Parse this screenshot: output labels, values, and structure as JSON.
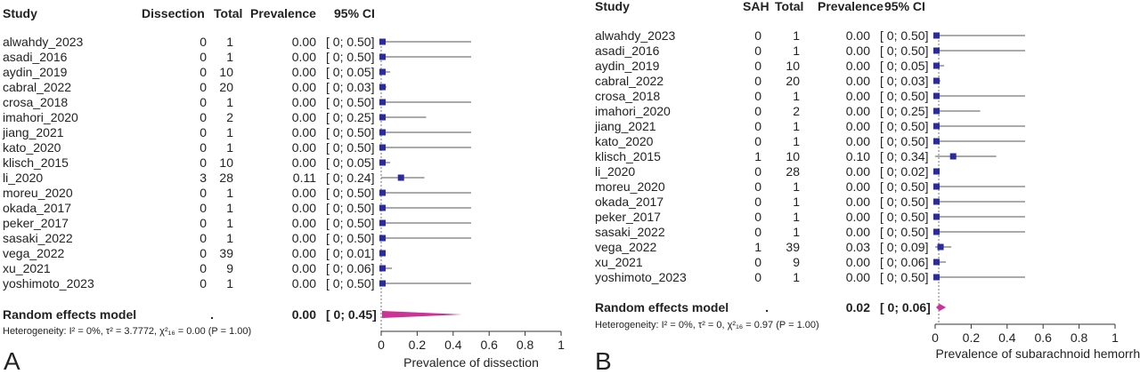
{
  "chart_data": [
    {
      "panel_label": "A",
      "type": "forest",
      "columns": {
        "study": "Study",
        "events": "Dissection",
        "total": "Total",
        "estimate": "Prevalence",
        "ci": "95% CI"
      },
      "studies": [
        {
          "name": "alwahdy_2023",
          "events": "0",
          "total": "1",
          "prev": "0.00",
          "ci_text": "[ 0; 0.50]",
          "est": 0.0,
          "lo": 0,
          "hi": 0.5
        },
        {
          "name": "asadi_2016",
          "events": "0",
          "total": "1",
          "prev": "0.00",
          "ci_text": "[ 0; 0.50]",
          "est": 0.0,
          "lo": 0,
          "hi": 0.5
        },
        {
          "name": "aydin_2019",
          "events": "0",
          "total": "10",
          "prev": "0.00",
          "ci_text": "[ 0; 0.05]",
          "est": 0.0,
          "lo": 0,
          "hi": 0.05
        },
        {
          "name": "cabral_2022",
          "events": "0",
          "total": "20",
          "prev": "0.00",
          "ci_text": "[ 0; 0.03]",
          "est": 0.0,
          "lo": 0,
          "hi": 0.03
        },
        {
          "name": "crosa_2018",
          "events": "0",
          "total": "1",
          "prev": "0.00",
          "ci_text": "[ 0; 0.50]",
          "est": 0.0,
          "lo": 0,
          "hi": 0.5
        },
        {
          "name": "imahori_2020",
          "events": "0",
          "total": "2",
          "prev": "0.00",
          "ci_text": "[ 0; 0.25]",
          "est": 0.0,
          "lo": 0,
          "hi": 0.25
        },
        {
          "name": "jiang_2021",
          "events": "0",
          "total": "1",
          "prev": "0.00",
          "ci_text": "[ 0; 0.50]",
          "est": 0.0,
          "lo": 0,
          "hi": 0.5
        },
        {
          "name": "kato_2020",
          "events": "0",
          "total": "1",
          "prev": "0.00",
          "ci_text": "[ 0; 0.50]",
          "est": 0.0,
          "lo": 0,
          "hi": 0.5
        },
        {
          "name": "klisch_2015",
          "events": "0",
          "total": "10",
          "prev": "0.00",
          "ci_text": "[ 0; 0.05]",
          "est": 0.0,
          "lo": 0,
          "hi": 0.05
        },
        {
          "name": "li_2020",
          "events": "3",
          "total": "28",
          "prev": "0.11",
          "ci_text": "[ 0; 0.24]",
          "est": 0.11,
          "lo": 0,
          "hi": 0.24
        },
        {
          "name": "moreu_2020",
          "events": "0",
          "total": "1",
          "prev": "0.00",
          "ci_text": "[ 0; 0.50]",
          "est": 0.0,
          "lo": 0,
          "hi": 0.5
        },
        {
          "name": "okada_2017",
          "events": "0",
          "total": "1",
          "prev": "0.00",
          "ci_text": "[ 0; 0.50]",
          "est": 0.0,
          "lo": 0,
          "hi": 0.5
        },
        {
          "name": "peker_2017",
          "events": "0",
          "total": "1",
          "prev": "0.00",
          "ci_text": "[ 0; 0.50]",
          "est": 0.0,
          "lo": 0,
          "hi": 0.5
        },
        {
          "name": "sasaki_2022",
          "events": "0",
          "total": "1",
          "prev": "0.00",
          "ci_text": "[ 0; 0.50]",
          "est": 0.0,
          "lo": 0,
          "hi": 0.5
        },
        {
          "name": "vega_2022",
          "events": "0",
          "total": "39",
          "prev": "0.00",
          "ci_text": "[ 0; 0.01]",
          "est": 0.0,
          "lo": 0,
          "hi": 0.01
        },
        {
          "name": "xu_2021",
          "events": "0",
          "total": "9",
          "prev": "0.00",
          "ci_text": "[ 0; 0.06]",
          "est": 0.0,
          "lo": 0,
          "hi": 0.06
        },
        {
          "name": "yoshimoto_2023",
          "events": "0",
          "total": "1",
          "prev": "0.00",
          "ci_text": "[ 0; 0.50]",
          "est": 0.0,
          "lo": 0,
          "hi": 0.5
        }
      ],
      "pooled": {
        "label": "Random effects model",
        "events": ".",
        "prev": "0.00",
        "ci_text": "[ 0; 0.45]",
        "est": 0.0,
        "lo": 0,
        "hi": 0.45
      },
      "heterogeneity": "Heterogeneity: I² = 0%, τ² = 3.7772, χ²₁₆ = 0.00 (P = 1.00)",
      "x_ticks": [
        "0",
        "0.2",
        "0.4",
        "0.6",
        "0.8",
        "1"
      ],
      "xlim": [
        0,
        1
      ],
      "xlabel": "Prevalence of dissection"
    },
    {
      "panel_label": "B",
      "type": "forest",
      "columns": {
        "study": "Study",
        "events": "SAH",
        "total": "Total",
        "estimate": "Prevalence",
        "ci": "95% CI"
      },
      "studies": [
        {
          "name": "alwahdy_2023",
          "events": "0",
          "total": "1",
          "prev": "0.00",
          "ci_text": "[ 0; 0.50]",
          "est": 0.0,
          "lo": 0,
          "hi": 0.5
        },
        {
          "name": "asadi_2016",
          "events": "0",
          "total": "1",
          "prev": "0.00",
          "ci_text": "[ 0; 0.50]",
          "est": 0.0,
          "lo": 0,
          "hi": 0.5
        },
        {
          "name": "aydin_2019",
          "events": "0",
          "total": "10",
          "prev": "0.00",
          "ci_text": "[ 0; 0.05]",
          "est": 0.0,
          "lo": 0,
          "hi": 0.05
        },
        {
          "name": "cabral_2022",
          "events": "0",
          "total": "20",
          "prev": "0.00",
          "ci_text": "[ 0; 0.03]",
          "est": 0.0,
          "lo": 0,
          "hi": 0.03
        },
        {
          "name": "crosa_2018",
          "events": "0",
          "total": "1",
          "prev": "0.00",
          "ci_text": "[ 0; 0.50]",
          "est": 0.0,
          "lo": 0,
          "hi": 0.5
        },
        {
          "name": "imahori_2020",
          "events": "0",
          "total": "2",
          "prev": "0.00",
          "ci_text": "[ 0; 0.25]",
          "est": 0.0,
          "lo": 0,
          "hi": 0.25
        },
        {
          "name": "jiang_2021",
          "events": "0",
          "total": "1",
          "prev": "0.00",
          "ci_text": "[ 0; 0.50]",
          "est": 0.0,
          "lo": 0,
          "hi": 0.5
        },
        {
          "name": "kato_2020",
          "events": "0",
          "total": "1",
          "prev": "0.00",
          "ci_text": "[ 0; 0.50]",
          "est": 0.0,
          "lo": 0,
          "hi": 0.5
        },
        {
          "name": "klisch_2015",
          "events": "1",
          "total": "10",
          "prev": "0.10",
          "ci_text": "[ 0; 0.34]",
          "est": 0.1,
          "lo": 0,
          "hi": 0.34
        },
        {
          "name": "li_2020",
          "events": "0",
          "total": "28",
          "prev": "0.00",
          "ci_text": "[ 0; 0.02]",
          "est": 0.0,
          "lo": 0,
          "hi": 0.02
        },
        {
          "name": "moreu_2020",
          "events": "0",
          "total": "1",
          "prev": "0.00",
          "ci_text": "[ 0; 0.50]",
          "est": 0.0,
          "lo": 0,
          "hi": 0.5
        },
        {
          "name": "okada_2017",
          "events": "0",
          "total": "1",
          "prev": "0.00",
          "ci_text": "[ 0; 0.50]",
          "est": 0.0,
          "lo": 0,
          "hi": 0.5
        },
        {
          "name": "peker_2017",
          "events": "0",
          "total": "1",
          "prev": "0.00",
          "ci_text": "[ 0; 0.50]",
          "est": 0.0,
          "lo": 0,
          "hi": 0.5
        },
        {
          "name": "sasaki_2022",
          "events": "0",
          "total": "1",
          "prev": "0.00",
          "ci_text": "[ 0; 0.50]",
          "est": 0.0,
          "lo": 0,
          "hi": 0.5
        },
        {
          "name": "vega_2022",
          "events": "1",
          "total": "39",
          "prev": "0.03",
          "ci_text": "[ 0; 0.09]",
          "est": 0.03,
          "lo": 0,
          "hi": 0.09
        },
        {
          "name": "xu_2021",
          "events": "0",
          "total": "9",
          "prev": "0.00",
          "ci_text": "[ 0; 0.06]",
          "est": 0.0,
          "lo": 0,
          "hi": 0.06
        },
        {
          "name": "yoshimoto_2023",
          "events": "0",
          "total": "1",
          "prev": "0.00",
          "ci_text": "[ 0; 0.50]",
          "est": 0.0,
          "lo": 0,
          "hi": 0.5
        }
      ],
      "pooled": {
        "label": "Random effects model",
        "events": ".",
        "prev": "0.02",
        "ci_text": "[ 0; 0.06]",
        "est": 0.02,
        "lo": 0,
        "hi": 0.06
      },
      "heterogeneity": "Heterogeneity: I² = 0%, τ² = 0, χ²₁₆ = 0.97 (P = 1.00)",
      "x_ticks": [
        "0",
        "0.2",
        "0.4",
        "0.6",
        "0.8",
        "1"
      ],
      "xlim": [
        0,
        1
      ],
      "xlabel": "Prevalence of subarachnoid hemorrhage"
    }
  ],
  "colors": {
    "marker": "#2b2ba0",
    "ci_line": "#555555",
    "diamond": "#cc3399",
    "text": "#222222"
  }
}
